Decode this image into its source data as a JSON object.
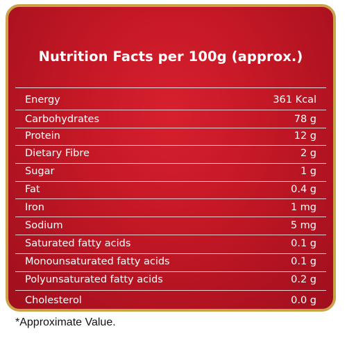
{
  "title": "Nutrition Facts per 100g (approx.)",
  "colors": {
    "panel": "#c21725",
    "border": "#c9a24a",
    "text": "#ffffff"
  },
  "rows": [
    {
      "label": "Energy",
      "value": "361 Kcal"
    },
    {
      "label": "Carbohydrates",
      "value": "78 g"
    },
    {
      "label": "Protein",
      "value": "12 g"
    },
    {
      "label": "Dietary Fibre",
      "value": "2 g"
    },
    {
      "label": "Sugar",
      "value": "1 g"
    },
    {
      "label": "Fat",
      "value": "0.4 g"
    },
    {
      "label": "Iron",
      "value": "1 mg"
    },
    {
      "label": "Sodium",
      "value": "5 mg"
    },
    {
      "label": "Saturated fatty acids",
      "value": "0.1 g"
    },
    {
      "label": "Monounsaturated fatty acids",
      "value": "0.1 g"
    },
    {
      "label": "Polyunsaturated fatty acids",
      "value": "0.2 g"
    },
    {
      "label": "Cholesterol",
      "value": "0.0 g"
    }
  ],
  "footnote": "*Approximate Value."
}
